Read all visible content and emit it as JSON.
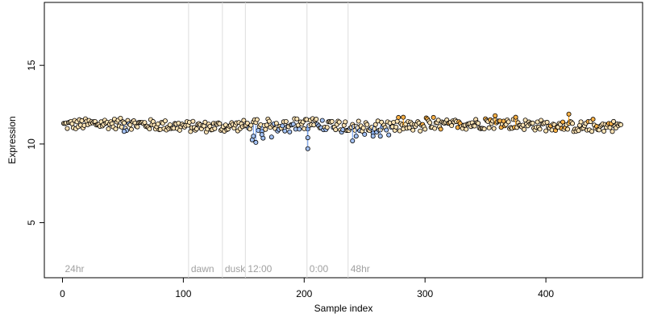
{
  "chart_data": {
    "type": "scatter",
    "title": "",
    "xlabel": "Sample index",
    "ylabel": "Expression",
    "xlim": [
      -15,
      480
    ],
    "ylim": [
      1.5,
      19.0
    ],
    "grid": false,
    "legend": "none",
    "x_ticks": [
      0,
      100,
      200,
      300,
      400
    ],
    "y_ticks": [
      5,
      10,
      15
    ],
    "n_points": 462,
    "baseline": 11.2,
    "segments": [
      {
        "label": "24hr",
        "x": 0
      },
      {
        "label": "dawn",
        "x": 105
      },
      {
        "label": "dusk",
        "x": 133
      },
      {
        "label": "12:00",
        "x": 152
      },
      {
        "label": "0:00",
        "x": 203
      },
      {
        "label": "48hr",
        "x": 237
      }
    ],
    "series": [
      {
        "color": "#000000",
        "fill": "#ffe4b5",
        "values_note": ""
      },
      {
        "color": "#6495ed",
        "fill": "#bcd2ee"
      },
      {
        "color": "#ff9900",
        "fill": "#ffcc80"
      }
    ],
    "highlights": [
      {
        "x": 203,
        "y": 9.7,
        "color": "blue"
      },
      {
        "x": 203,
        "y": 10.4,
        "color": "blue"
      },
      {
        "x": 160,
        "y": 10.1,
        "color": "blue"
      },
      {
        "x": 158,
        "y": 10.5,
        "color": "blue"
      },
      {
        "x": 165,
        "y": 10.6,
        "color": "blue"
      },
      {
        "x": 240,
        "y": 10.2,
        "color": "blue"
      },
      {
        "x": 243,
        "y": 10.5,
        "color": "blue"
      },
      {
        "x": 257,
        "y": 10.5,
        "color": "blue"
      },
      {
        "x": 263,
        "y": 10.5,
        "color": "blue"
      },
      {
        "x": 51,
        "y": 10.8,
        "color": "blue"
      },
      {
        "x": 282,
        "y": 11.7,
        "color": "orange"
      },
      {
        "x": 358,
        "y": 11.8,
        "color": "orange"
      },
      {
        "x": 419,
        "y": 11.9,
        "color": "orange"
      },
      {
        "x": 375,
        "y": 11.7,
        "color": "orange"
      }
    ]
  }
}
